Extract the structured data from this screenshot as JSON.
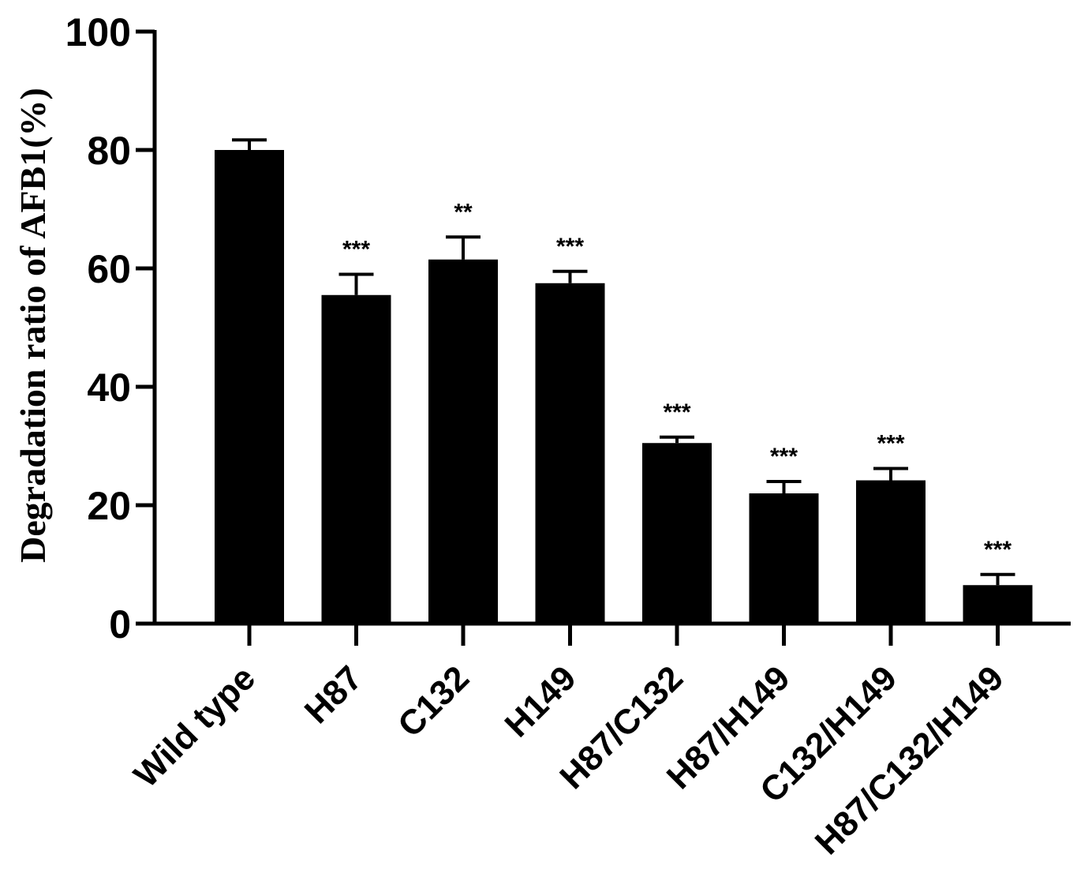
{
  "chart_data": {
    "type": "bar",
    "title": "",
    "xlabel": "",
    "ylabel": "Degradation ratio of AFB1(%)",
    "ylim": [
      0,
      100
    ],
    "yticks": [
      0,
      20,
      40,
      60,
      80,
      100
    ],
    "categories": [
      "Wild type",
      "H87",
      "C132",
      "H149",
      "H87/C132",
      "H87/H149",
      "C132/H149",
      "H87/C132/H149"
    ],
    "values": [
      80,
      55.5,
      61.5,
      57.5,
      30.5,
      22,
      24.2,
      6.5
    ],
    "errors": [
      1.7,
      3.5,
      3.8,
      2.0,
      1.0,
      2.0,
      2.0,
      1.8
    ],
    "significance": [
      "",
      "***",
      "**",
      "***",
      "***",
      "***",
      "***",
      "***"
    ],
    "bar_color": "#000000",
    "grid": false,
    "legend": "none"
  }
}
